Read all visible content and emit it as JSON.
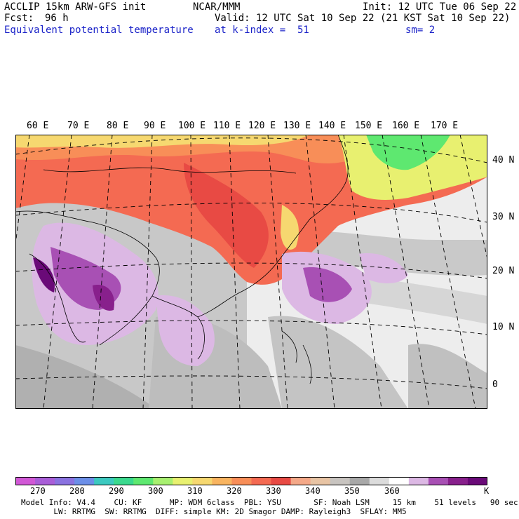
{
  "header": {
    "model": "ACCLIP 15km ARW-GFS init",
    "org": "NCAR/MMM",
    "init": "Init: 12 UTC Tue 06 Sep 22",
    "fcst_label": "Fcst:",
    "fcst_value": "96 h",
    "valid": "Valid: 12 UTC Sat 10 Sep 22 (21 KST Sat 10 Sep 22)",
    "field": "Equivalent potential temperature",
    "level": "at k-index =  51",
    "smoothing": "sm= 2"
  },
  "map": {
    "lon_labels": [
      "60 E",
      "70 E",
      "80 E",
      "90 E",
      "100 E",
      "110 E",
      "120 E",
      "130 E",
      "140 E",
      "150 E",
      "160 E",
      "170 E"
    ],
    "lat_labels": [
      "40 N",
      "30 N",
      "20 N",
      "10 N",
      "0"
    ]
  },
  "colorbar": {
    "colors": [
      "#d158d6",
      "#a95ed8",
      "#8a72e0",
      "#6c8fe8",
      "#3cc9c0",
      "#3ad98e",
      "#5ee870",
      "#a8f070",
      "#e8f070",
      "#f6d870",
      "#f8b460",
      "#f88e58",
      "#f46a52",
      "#e84a44",
      "#f4a888",
      "#e8c4a4",
      "#c8c4c0",
      "#a8a8a8",
      "#dcdcdc",
      "#ffffff",
      "#dcb8e4",
      "#a850b4",
      "#88208c",
      "#6a0a78"
    ],
    "tick_labels": [
      "270",
      "280",
      "290",
      "300",
      "310",
      "320",
      "330",
      "340",
      "350",
      "360"
    ],
    "unit": "K"
  },
  "footer": {
    "line1": "Model Info: V4.4    CU: KF      MP: WDM 6class  PBL: YSU       SF: Noah LSM     15 km    51 levels   90 sec",
    "line2": "       LW: RRTMG  SW: RRTMG  DIFF: simple KM: 2D Smagor DAMP: Rayleigh3  SFLAY: MM5"
  }
}
